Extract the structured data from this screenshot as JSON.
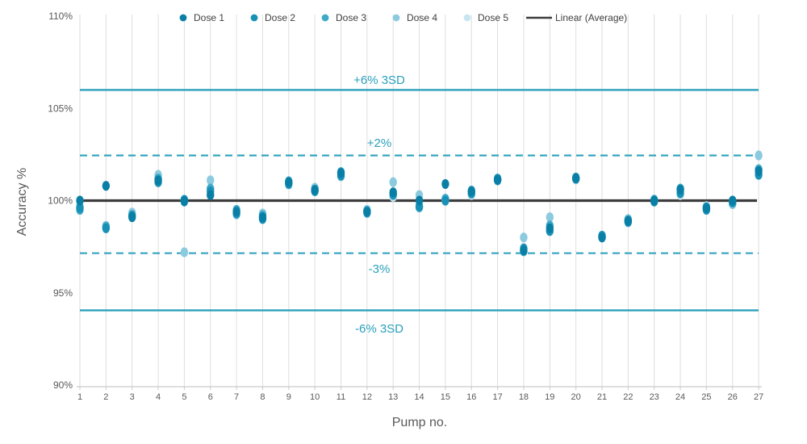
{
  "chart_data": {
    "type": "scatter",
    "title": "",
    "xlabel": "Pump no.",
    "ylabel": "Accuracy %",
    "x": [
      1,
      2,
      3,
      4,
      5,
      6,
      7,
      8,
      9,
      10,
      11,
      12,
      13,
      14,
      15,
      16,
      17,
      18,
      19,
      20,
      21,
      22,
      23,
      24,
      25,
      26,
      27
    ],
    "ylim": [
      90,
      110
    ],
    "yticks": [
      {
        "label": "110%",
        "value": 110
      },
      {
        "label": "105%",
        "value": 105
      },
      {
        "label": "100%",
        "value": 100
      },
      {
        "label": "95%",
        "value": 95
      },
      {
        "label": "90%",
        "value": 90
      }
    ],
    "grid": "vertical",
    "legend_position": "top",
    "series": [
      {
        "name": "Dose 1",
        "color": "#0a7fa5",
        "values": [
          100.0,
          100.8,
          99.1,
          101.1,
          100.0,
          100.3,
          99.4,
          99.1,
          101.0,
          100.55,
          101.5,
          99.4,
          100.45,
          100.0,
          100.9,
          100.5,
          101.15,
          97.3,
          98.5,
          101.2,
          98.0,
          98.9,
          100.0,
          100.6,
          99.6,
          100.0,
          101.6
        ]
      },
      {
        "name": "Dose 2",
        "color": "#1991b6",
        "values": [
          99.6,
          98.5,
          99.2,
          101.0,
          99.95,
          100.5,
          99.3,
          99.0,
          100.9,
          100.6,
          101.35,
          99.35,
          100.35,
          99.65,
          100.0,
          100.4,
          101.1,
          97.4,
          98.35,
          101.25,
          98.1,
          98.85,
          99.95,
          100.4,
          99.5,
          99.9,
          101.4
        ]
      },
      {
        "name": "Dose 3",
        "color": "#3fa9c9",
        "values": [
          99.5,
          98.6,
          99.15,
          101.2,
          100.05,
          100.65,
          99.5,
          99.2,
          101.05,
          100.5,
          101.55,
          99.45,
          100.3,
          99.7,
          100.1,
          100.55,
          101.2,
          97.25,
          98.65,
          101.2,
          98.05,
          98.95,
          100.05,
          100.65,
          99.65,
          99.95,
          101.7
        ]
      },
      {
        "name": "Dose 4",
        "color": "#8ccadf",
        "values": [
          99.7,
          98.55,
          99.35,
          101.4,
          97.2,
          101.1,
          99.25,
          99.3,
          100.95,
          100.7,
          101.45,
          99.5,
          101.0,
          100.3,
          100.05,
          100.35,
          101.1,
          98.0,
          99.1,
          101.15,
          98.0,
          99.0,
          100.0,
          100.5,
          99.55,
          99.8,
          102.45
        ]
      },
      {
        "name": "Dose 5",
        "color": "#c8e6f2",
        "values": [
          99.6,
          98.65,
          99.25,
          101.15,
          100.0,
          100.55,
          99.35,
          99.05,
          100.85,
          100.6,
          101.3,
          99.3,
          100.2,
          99.6,
          100.0,
          100.3,
          101.15,
          97.45,
          98.45,
          101.2,
          98.1,
          98.8,
          99.95,
          100.3,
          99.7,
          99.85,
          101.5
        ]
      }
    ],
    "average_line": {
      "label": "Linear (Average)",
      "value": 100,
      "color": "#3d3d3d"
    },
    "ref_lines": [
      {
        "label": "+6% 3SD",
        "value": 106.0,
        "style": "solid"
      },
      {
        "label": "+2%",
        "value": 102.45,
        "style": "dashed"
      },
      {
        "label": "-3%",
        "value": 97.15,
        "style": "dashed"
      },
      {
        "label": "-6% 3SD",
        "value": 94.05,
        "style": "solid"
      }
    ],
    "colors": {
      "reference_teal": "#2aa0bc",
      "grid": "#dedede",
      "axis_line": "#c9c9c9",
      "tick_text": "#595959",
      "legend_text": "#404040",
      "background": "#ffffff"
    }
  }
}
